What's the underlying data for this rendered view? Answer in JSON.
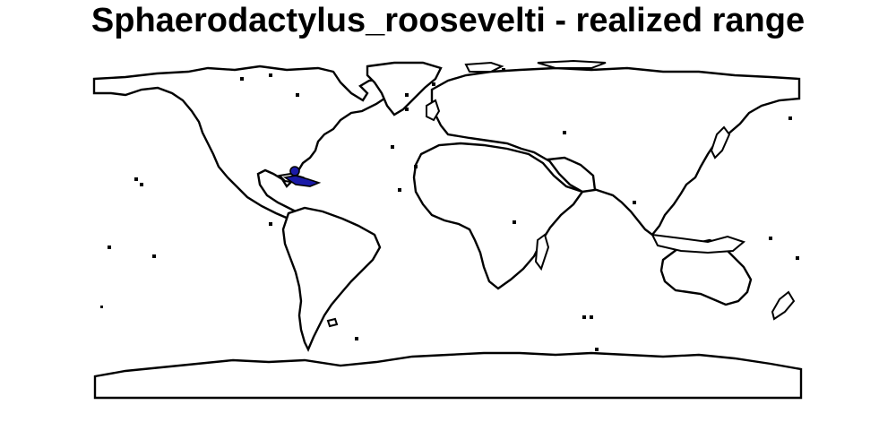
{
  "title": "Sphaerodactylus_roosevelti - realized range",
  "map": {
    "projection": "equirectangular world outline",
    "land_fill": "#ffffff",
    "outline_color": "#000000",
    "range_color": "#1a1aa8",
    "range_region": "Greater Antilles (Hispaniola / Puerto Rico area)"
  }
}
